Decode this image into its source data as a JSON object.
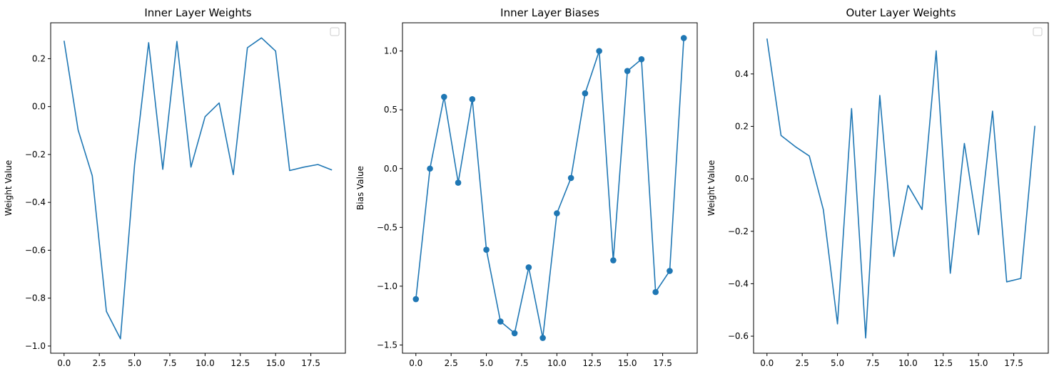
{
  "chart_data": [
    {
      "type": "line",
      "title": "Inner Layer Weights",
      "xlabel": "",
      "ylabel": "Weight Value",
      "legend": "top-right",
      "markers": false,
      "color": "#1f77b4",
      "xlim": [
        -0.95,
        19.95
      ],
      "ylim": [
        -1.03,
        0.35
      ],
      "xticks": [
        0.0,
        2.5,
        5.0,
        7.5,
        10.0,
        12.5,
        15.0,
        17.5
      ],
      "xtick_labels": [
        "0.0",
        "2.5",
        "5.0",
        "7.5",
        "10.0",
        "12.5",
        "15.0",
        "17.5"
      ],
      "yticks": [
        -1.0,
        -0.8,
        -0.6,
        -0.4,
        -0.2,
        0.0,
        0.2
      ],
      "ytick_labels": [
        "−1.0",
        "−0.8",
        "−0.6",
        "−0.4",
        "−0.2",
        "0.0",
        "0.2"
      ],
      "x": [
        0,
        1,
        2,
        3,
        4,
        5,
        6,
        7,
        8,
        9,
        10,
        11,
        12,
        13,
        14,
        15,
        16,
        17,
        18,
        19
      ],
      "values": [
        0.275,
        -0.098,
        -0.289,
        -0.855,
        -0.97,
        -0.243,
        0.267,
        -0.262,
        0.272,
        -0.253,
        -0.042,
        0.015,
        -0.284,
        0.246,
        0.287,
        0.232,
        -0.267,
        -0.253,
        -0.242,
        -0.265
      ]
    },
    {
      "type": "line",
      "title": "Inner Layer Biases",
      "xlabel": "",
      "ylabel": "Bias Value",
      "markers": true,
      "color": "#1f77b4",
      "xlim": [
        -0.95,
        19.95
      ],
      "ylim": [
        -1.57,
        1.24
      ],
      "xticks": [
        0.0,
        2.5,
        5.0,
        7.5,
        10.0,
        12.5,
        15.0,
        17.5
      ],
      "xtick_labels": [
        "0.0",
        "2.5",
        "5.0",
        "7.5",
        "10.0",
        "12.5",
        "15.0",
        "17.5"
      ],
      "yticks": [
        -1.5,
        -1.0,
        -0.5,
        0.0,
        0.5,
        1.0
      ],
      "ytick_labels": [
        "−1.5",
        "−1.0",
        "−0.5",
        "0.0",
        "0.5",
        "1.0"
      ],
      "x": [
        0,
        1,
        2,
        3,
        4,
        5,
        6,
        7,
        8,
        9,
        10,
        11,
        12,
        13,
        14,
        15,
        16,
        17,
        18,
        19
      ],
      "values": [
        -1.11,
        0.0,
        0.61,
        -0.12,
        0.59,
        -0.69,
        -1.3,
        -1.4,
        -0.84,
        -1.44,
        -0.38,
        -0.08,
        0.64,
        1.0,
        -0.78,
        0.83,
        0.93,
        -1.05,
        -0.87,
        1.11
      ]
    },
    {
      "type": "line",
      "title": "Outer Layer Weights",
      "xlabel": "",
      "ylabel": "Weight Value",
      "legend": "top-right",
      "markers": false,
      "color": "#1f77b4",
      "xlim": [
        -0.95,
        19.95
      ],
      "ylim": [
        -0.665,
        0.595
      ],
      "xticks": [
        0.0,
        2.5,
        5.0,
        7.5,
        10.0,
        12.5,
        15.0,
        17.5
      ],
      "xtick_labels": [
        "0.0",
        "2.5",
        "5.0",
        "7.5",
        "10.0",
        "12.5",
        "15.0",
        "17.5"
      ],
      "yticks": [
        -0.6,
        -0.4,
        -0.2,
        0.0,
        0.2,
        0.4
      ],
      "ytick_labels": [
        "−0.6",
        "−0.4",
        "−0.2",
        "0.0",
        "0.2",
        "0.4"
      ],
      "x": [
        0,
        1,
        2,
        3,
        4,
        5,
        6,
        7,
        8,
        9,
        10,
        11,
        12,
        13,
        14,
        15,
        16,
        17,
        18,
        19
      ],
      "values": [
        0.535,
        0.165,
        0.123,
        0.087,
        -0.118,
        -0.553,
        0.268,
        -0.607,
        0.318,
        -0.296,
        -0.025,
        -0.117,
        0.488,
        -0.36,
        0.135,
        -0.213,
        0.258,
        -0.393,
        -0.38,
        0.202
      ]
    }
  ]
}
